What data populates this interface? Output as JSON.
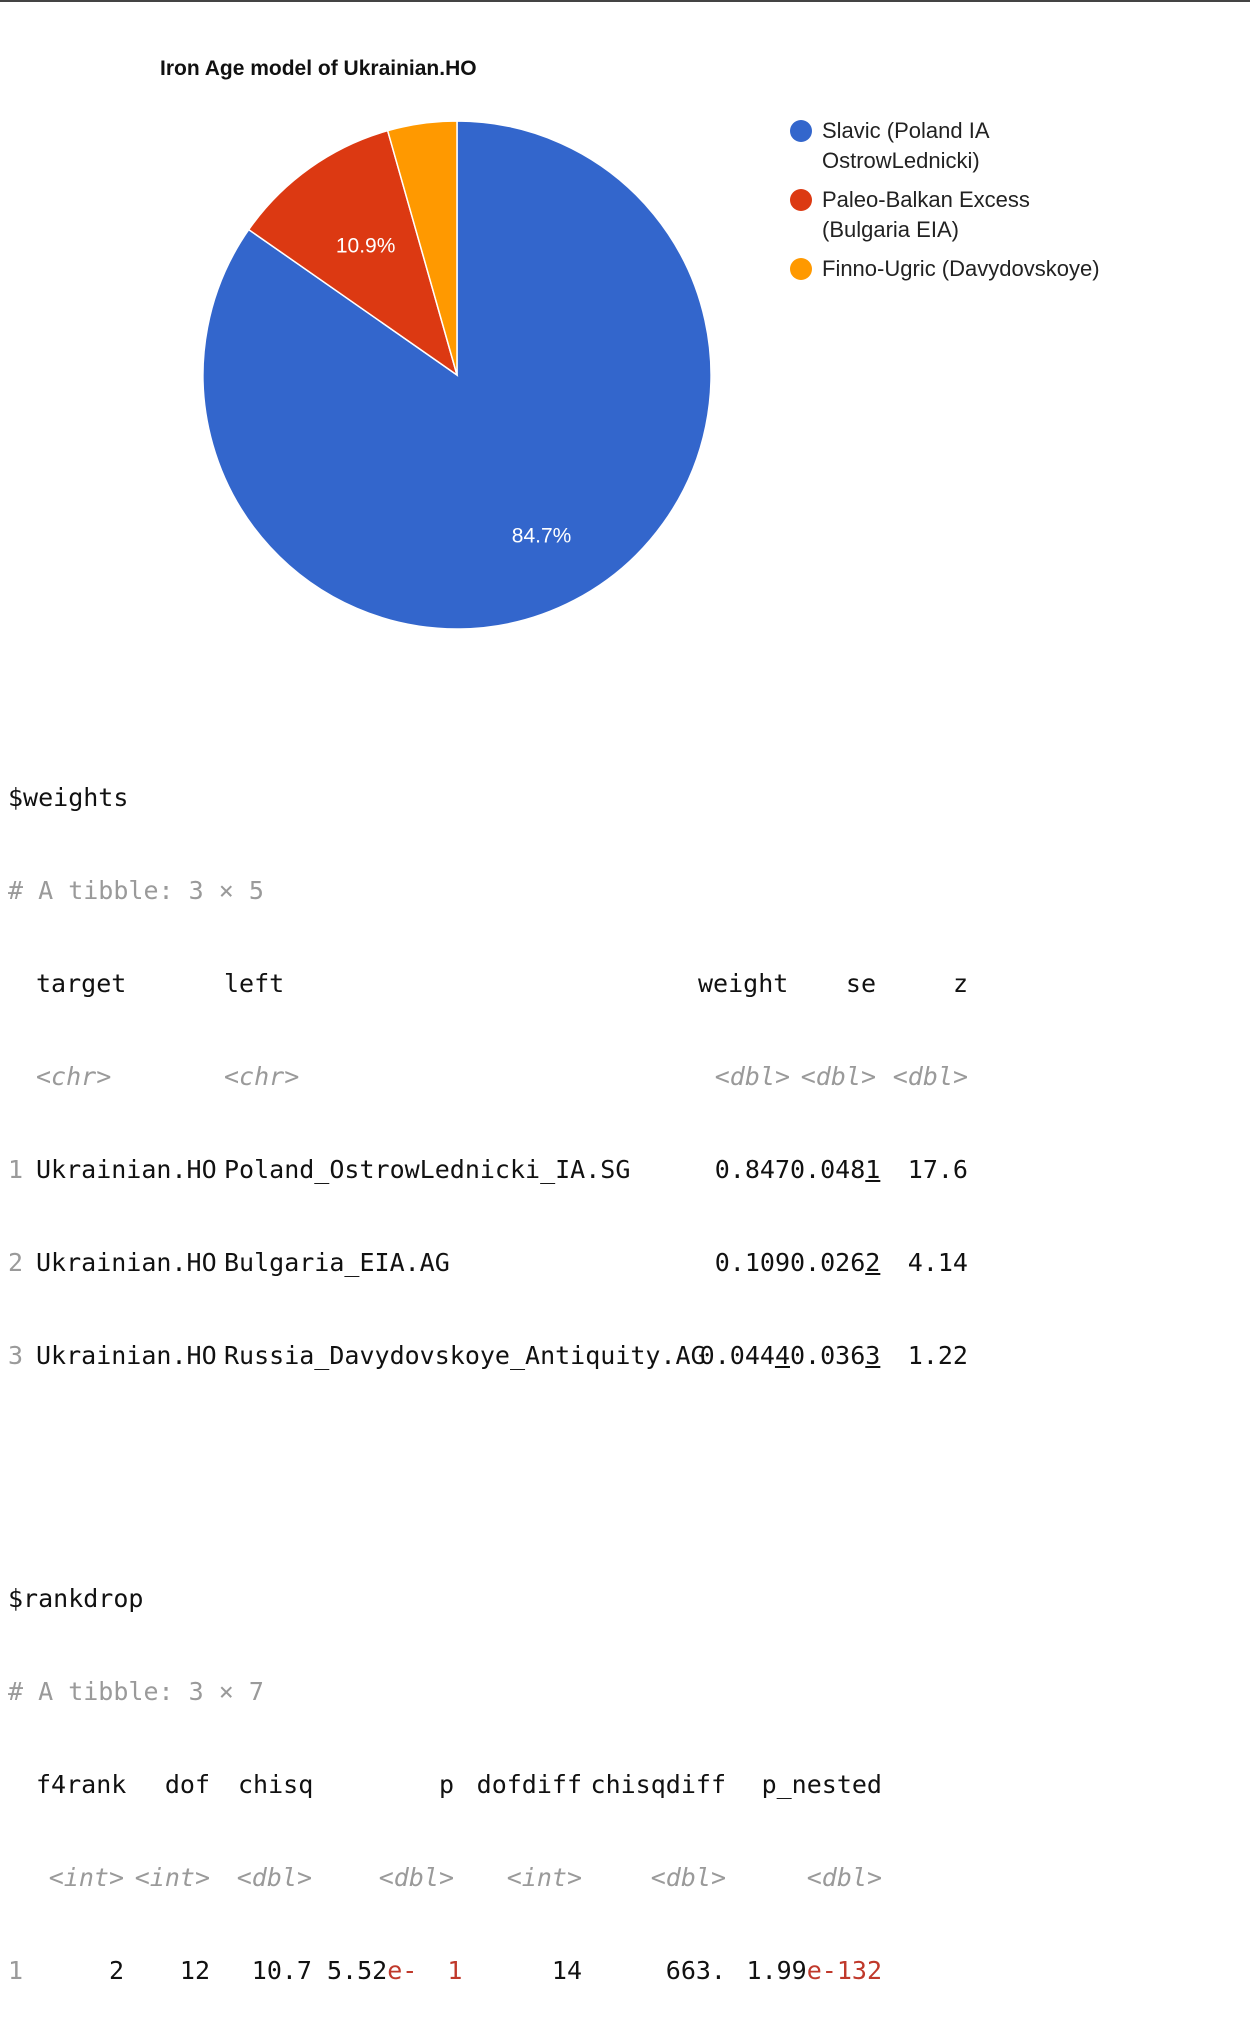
{
  "chart_data": {
    "type": "pie",
    "title": "Iron Age model of Ukrainian.HO",
    "slices": [
      {
        "label": "Slavic (Poland IA OstrowLednicki)",
        "value": 84.7,
        "display": "84.7%",
        "color": "#3366cc"
      },
      {
        "label": "Paleo-Balkan Excess (Bulgaria EIA)",
        "value": 10.9,
        "display": "10.9%",
        "color": "#dc3912"
      },
      {
        "label": "Finno-Ugric (Davydovskoye)",
        "value": 4.4,
        "display": "",
        "color": "#ff9900"
      }
    ],
    "legend_position": "right"
  },
  "weights": {
    "header": "$weights",
    "tibble": "# A tibble: 3 × 5",
    "columns": [
      "target",
      "left",
      "weight",
      "se",
      "z"
    ],
    "types": [
      "<chr>",
      "<chr>",
      "<dbl>",
      "<dbl>",
      "<dbl>"
    ],
    "rows": [
      {
        "n": "1",
        "target": "Ukrainian.HO",
        "left": "Poland_OstrowLednicki_IA.SG",
        "weight": "0.847",
        "se_main": "0.048",
        "se_u": "1",
        "z": "17.6"
      },
      {
        "n": "2",
        "target": "Ukrainian.HO",
        "left": "Bulgaria_EIA.AG",
        "weight": "0.109",
        "se_main": "0.026",
        "se_u": "2",
        "z": "4.14"
      },
      {
        "n": "3",
        "target": "Ukrainian.HO",
        "left": "Russia_Davydovskoye_Antiquity.AG",
        "weight_main": "0.044",
        "weight_u": "4",
        "se_main": "0.036",
        "se_u": "3",
        "z": "1.22"
      }
    ]
  },
  "rankdrop": {
    "header": "$rankdrop",
    "tibble": "# A tibble: 3 × 7",
    "columns": [
      "f4rank",
      "dof",
      "chisq",
      "p",
      "dofdiff",
      "chisqdiff",
      "p_nested"
    ],
    "types": [
      "<int>",
      "<int>",
      "<dbl>",
      "<dbl>",
      "<int>",
      "<dbl>",
      "<dbl>"
    ],
    "rows": [
      {
        "n": "1",
        "f4rank": "2",
        "dof": "12",
        "chisq": "10.7",
        "p_mant": "5.52",
        "p_exp": "e-",
        "p_expnum": "1",
        "dofdiff": "14",
        "chisqdiff": "663.",
        "pn_mant": "1.99",
        "pn_exp": "e-132"
      }
    ]
  }
}
